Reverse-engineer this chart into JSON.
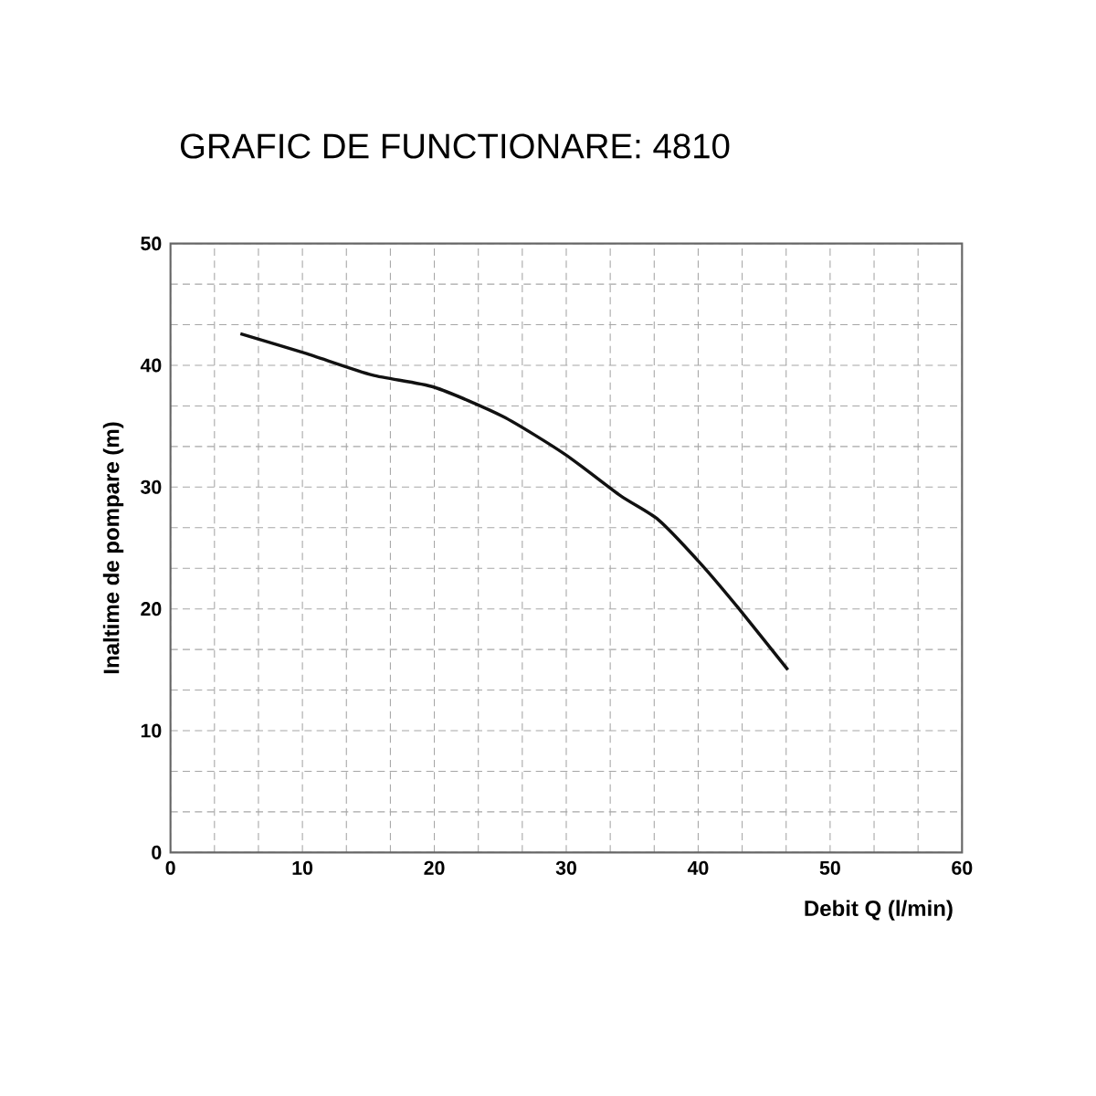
{
  "chart_data": {
    "type": "line",
    "title": "GRAFIC DE FUNCTIONARE: 4810",
    "xlabel": "Debit   Q (l/min)",
    "ylabel": "Inaltime de pompare (m)",
    "x": [
      5.3,
      10.2,
      15.3,
      20,
      25.2,
      29.9,
      34.1,
      37,
      40.2,
      43.1,
      46.8
    ],
    "series": [
      {
        "color": "#111111",
        "values": [
          42.6,
          41.0,
          39.2,
          38.2,
          35.8,
          32.7,
          29.3,
          27.3,
          23.7,
          20.0,
          15.0
        ]
      }
    ],
    "xlim": [
      0,
      60
    ],
    "ylim": [
      0,
      50
    ],
    "xticks": [
      0,
      10,
      20,
      30,
      40,
      50,
      60
    ],
    "yticks": [
      0,
      10,
      20,
      30,
      40,
      50
    ],
    "grid": true,
    "marker": "none",
    "line_style": "solid"
  }
}
